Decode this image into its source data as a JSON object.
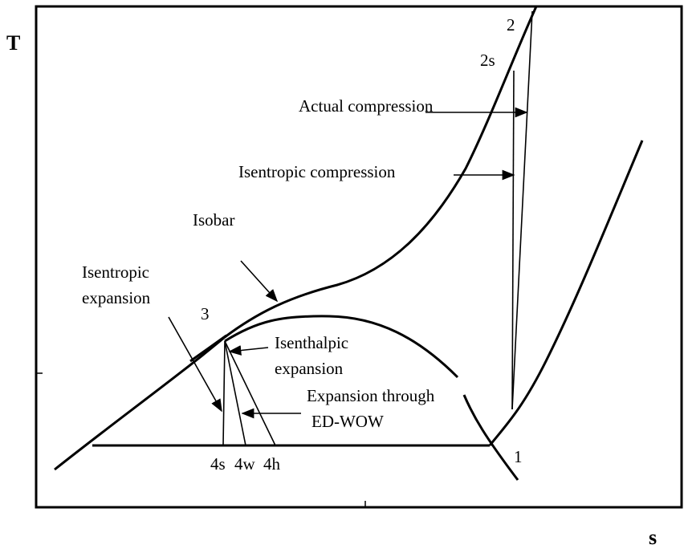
{
  "axes": {
    "y_label": "T",
    "x_label": "s"
  },
  "points": {
    "p2": "2",
    "p2s": "2s",
    "p3": "3",
    "p1": "1",
    "p4s": "4s",
    "p4w": "4w",
    "p4h": "4h"
  },
  "annotations": {
    "actual_compression": "Actual compression",
    "isentropic_compression": "Isentropic compression",
    "isobar": "Isobar",
    "isentropic_expansion": [
      "Isentropic",
      "expansion"
    ],
    "isenthalpic_expansion": [
      "Isenthalpic",
      "expansion"
    ],
    "ed_wow_expansion": [
      "Expansion through",
      "ED-WOW"
    ]
  }
}
